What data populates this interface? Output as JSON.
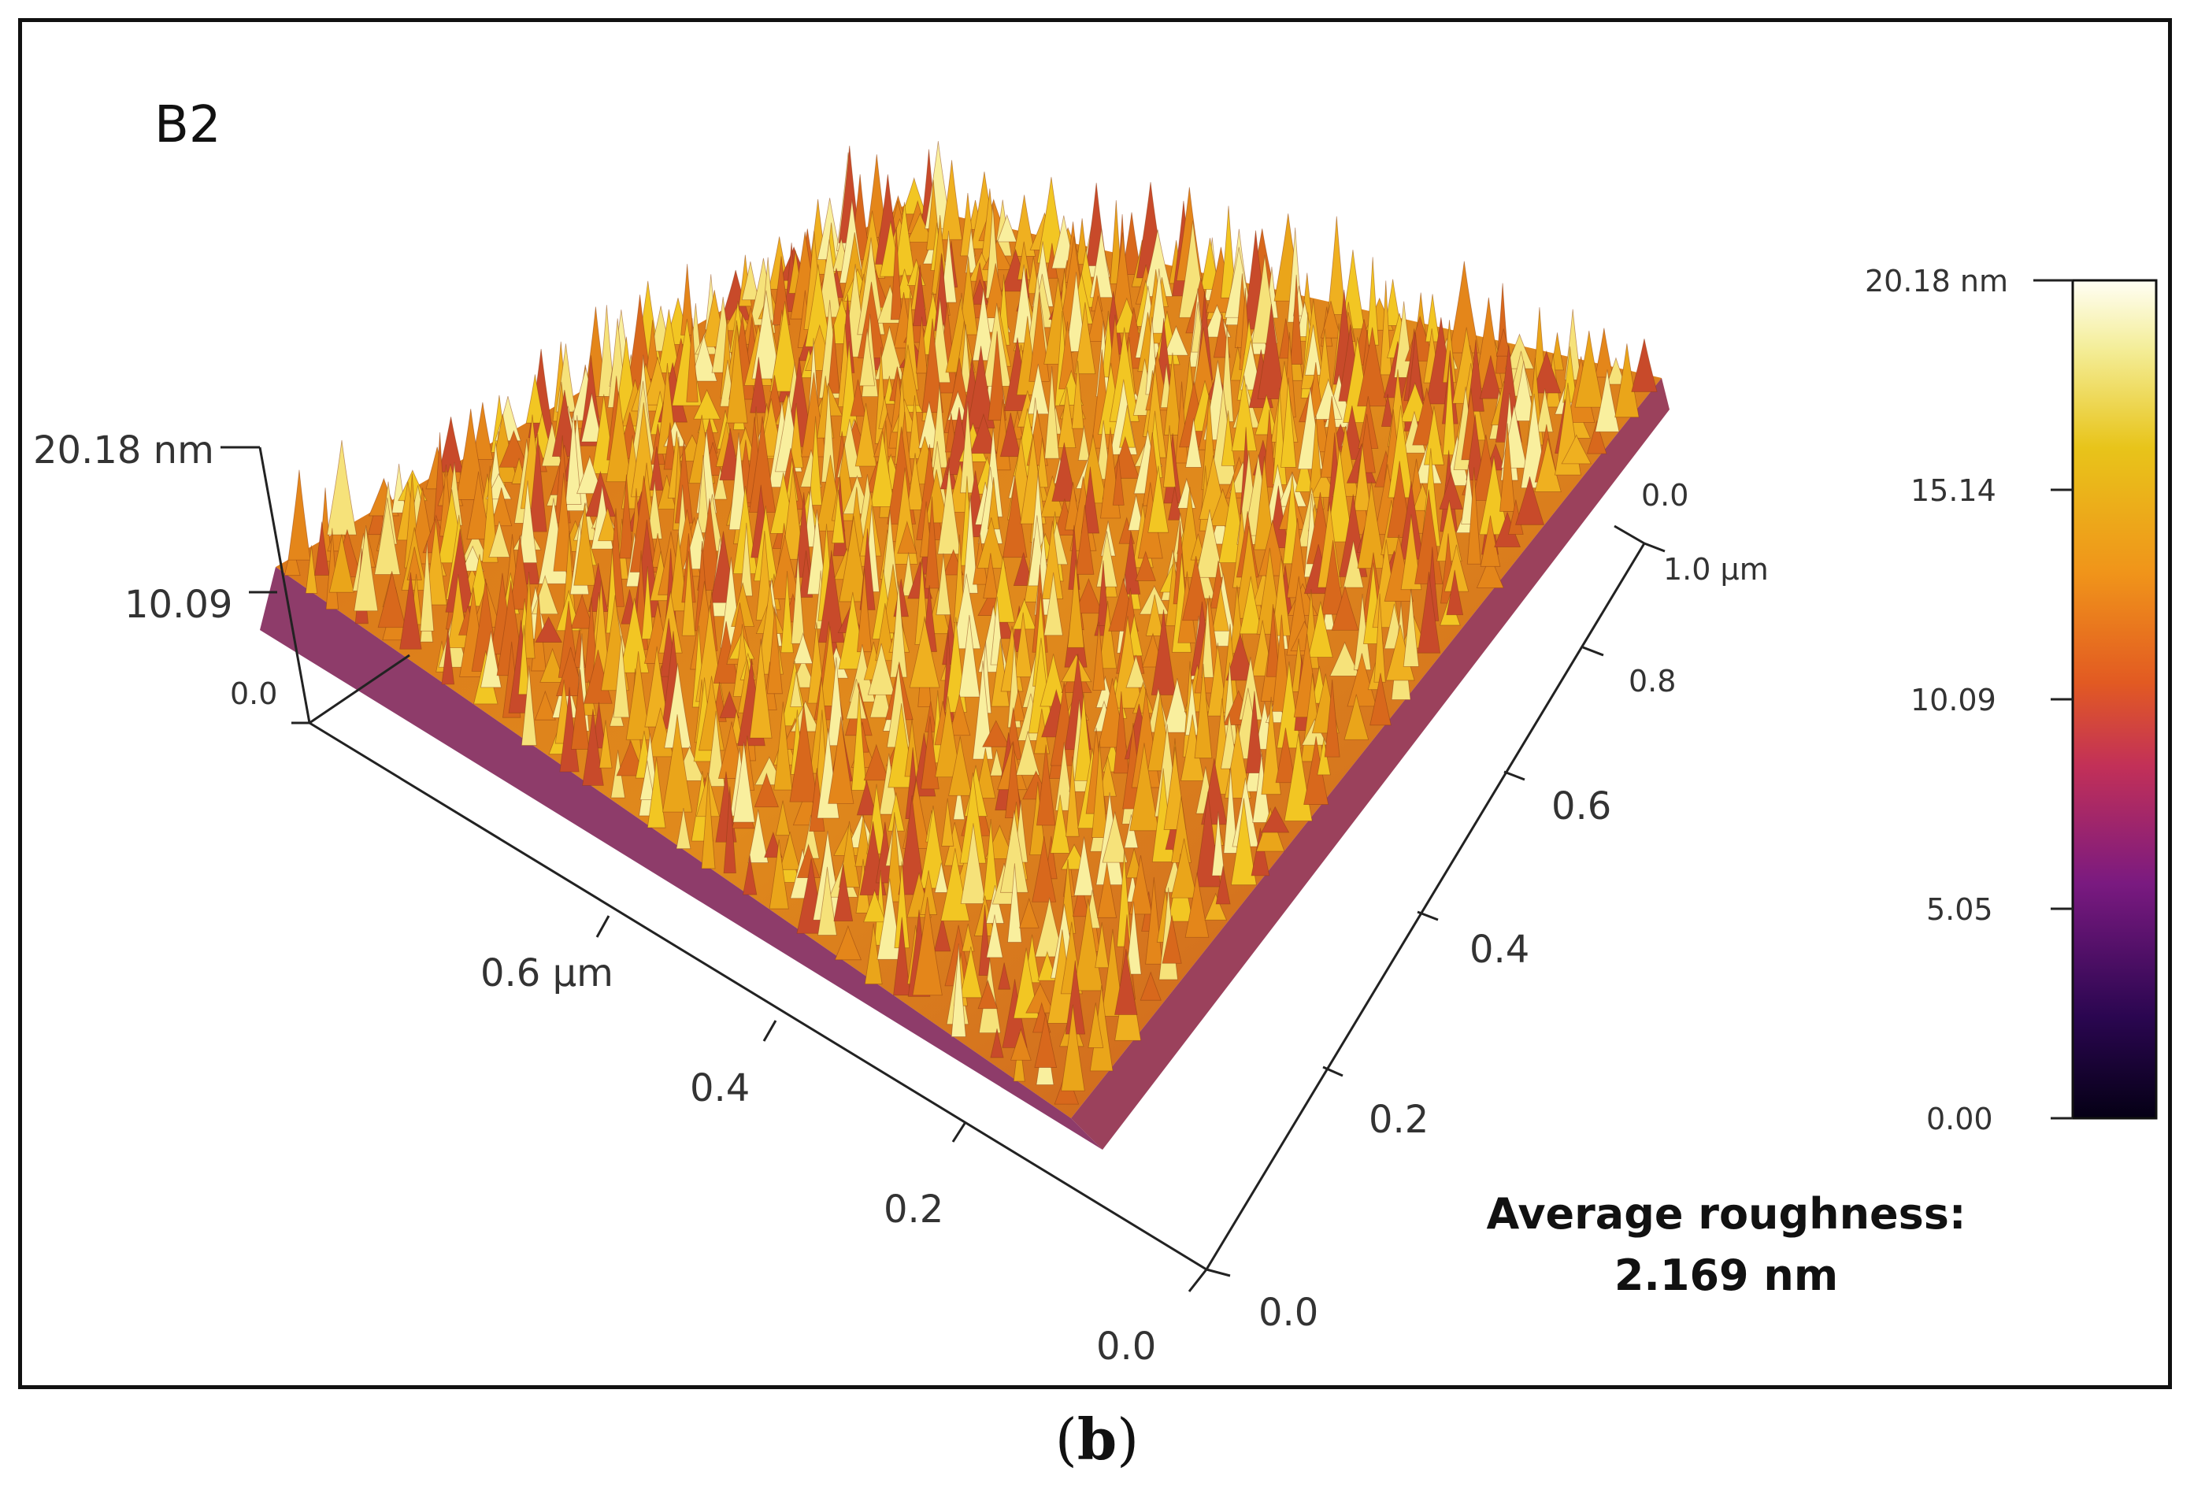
{
  "chart_data": {
    "type": "surface3d",
    "title": "B2",
    "panel_label": "B2",
    "x_axis": {
      "label_unit": "µm",
      "range": [
        0.0,
        1.0
      ],
      "tick_labels": [
        "0.0",
        "0.2",
        "0.4",
        "0.6 µm"
      ]
    },
    "y_axis": {
      "label_unit": "µm",
      "range": [
        0.0,
        1.0
      ],
      "tick_labels": [
        "0.0",
        "0.2",
        "0.4",
        "0.6",
        "0.8",
        "1.0 µm",
        "0.0"
      ]
    },
    "z_axis": {
      "unit": "nm",
      "range": [
        0.0,
        20.18
      ],
      "tick_labels": [
        "0.0",
        "10.09",
        "20.18 nm"
      ]
    },
    "colorbar": {
      "range": [
        0.0,
        20.18
      ],
      "tick_labels": [
        "20.18 nm",
        "15.14",
        "10.09",
        "5.05",
        "0.00"
      ],
      "tick_values": [
        20.18,
        15.14,
        10.09,
        5.05,
        0.0
      ],
      "colormap": [
        "#050015",
        "#3a0a5a",
        "#8a1a7a",
        "#c8305a",
        "#e86a1a",
        "#f4a010",
        "#e8c41a",
        "#f0ec80",
        "#fffef0"
      ]
    },
    "annotation": {
      "line1": "Average roughness:",
      "line2": "2.169 nm",
      "average_roughness_nm": 2.169
    }
  },
  "caption": {
    "open": "(",
    "letter": "b",
    "close": ")"
  }
}
